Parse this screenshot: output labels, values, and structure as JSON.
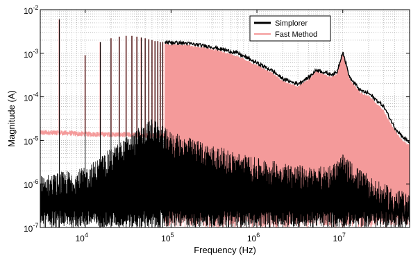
{
  "chart_data": {
    "type": "line",
    "xlabel": "Frequency (Hz)",
    "ylabel": "Magnitude (A)",
    "xscale": "log",
    "yscale": "log",
    "xlim": [
      3000,
      60000000
    ],
    "ylim": [
      1e-07,
      0.01
    ],
    "grid": true,
    "legend_position": "top-right",
    "x_ticks": [
      {
        "value": 10000,
        "base": "10",
        "exp": "4"
      },
      {
        "value": 100000,
        "base": "10",
        "exp": "5"
      },
      {
        "value": 1000000,
        "base": "10",
        "exp": "6"
      },
      {
        "value": 10000000,
        "base": "10",
        "exp": "7"
      }
    ],
    "y_ticks": [
      {
        "value": 1e-07,
        "base": "10",
        "exp": "-7"
      },
      {
        "value": 1e-06,
        "base": "10",
        "exp": "-6"
      },
      {
        "value": 1e-05,
        "base": "10",
        "exp": "-5"
      },
      {
        "value": 0.0001,
        "base": "10",
        "exp": "-4"
      },
      {
        "value": 0.001,
        "base": "10",
        "exp": "-3"
      },
      {
        "value": 0.01,
        "base": "10",
        "exp": "-2"
      }
    ],
    "series": [
      {
        "name": "Simplorer",
        "color": "#000000",
        "envelope": {
          "x": [
            3000,
            10000,
            30000,
            60000,
            100000,
            300000,
            1000000,
            2000000,
            3000000,
            5000000,
            8000000,
            10000000,
            15000000,
            25000000,
            40000000,
            60000000
          ],
          "y": [
            4e-07,
            6e-07,
            3e-06,
            8e-06,
            4e-06,
            2e-06,
            1e-06,
            8e-07,
            7e-07,
            6e-07,
            8e-07,
            1.2e-06,
            6e-07,
            3e-07,
            2e-07,
            1.5e-07
          ]
        },
        "peaks_x": [
          5000,
          10000,
          15000,
          20000,
          25000,
          30000,
          35000,
          40000,
          45000,
          50000,
          55000,
          60000,
          65000,
          70000,
          75000,
          80000
        ],
        "peaks_y": [
          0.006,
          0.0009,
          0.0018,
          0.0022,
          0.0024,
          0.0025,
          0.0025,
          0.0024,
          0.0023,
          0.0022,
          0.0021,
          0.002,
          0.0019,
          0.0019,
          0.0018,
          0.0018
        ],
        "upper": {
          "x": [
            85000,
            150000,
            300000,
            600000,
            1000000,
            1500000,
            2000000,
            2500000,
            3000000,
            4000000,
            5000000,
            7000000,
            8500000,
            10000000,
            12000000,
            16000000,
            20000000,
            30000000,
            40000000,
            50000000,
            60000000
          ],
          "y": [
            0.0018,
            0.0017,
            0.0014,
            0.001,
            0.0006,
            0.0004,
            0.00026,
            0.00022,
            0.0002,
            0.00028,
            0.00042,
            0.00033,
            0.00035,
            0.0011,
            0.00028,
            0.00014,
            0.00012,
            6e-05,
            2e-05,
            1.2e-05,
            9e-06
          ]
        }
      },
      {
        "name": "Fast Method",
        "color": "#f49a9a",
        "floor": {
          "x": [
            3000,
            5000,
            10000,
            30000,
            60000,
            85000
          ],
          "y": [
            1.5e-05,
            1.5e-05,
            1.4e-05,
            1.35e-05,
            1.3e-05,
            1.3e-05
          ]
        },
        "peaks_x": [
          5000,
          10000,
          15000,
          20000,
          25000,
          30000,
          35000,
          40000,
          45000,
          50000,
          55000,
          60000,
          65000,
          70000,
          75000,
          80000
        ],
        "peaks_y": [
          0.006,
          0.0009,
          0.0018,
          0.0022,
          0.0024,
          0.0025,
          0.0025,
          0.0024,
          0.0023,
          0.0022,
          0.0021,
          0.002,
          0.0019,
          0.0019,
          0.0018,
          0.0018
        ],
        "upper": {
          "x": [
            85000,
            150000,
            300000,
            600000,
            1000000,
            1500000,
            2000000,
            2500000,
            3000000,
            4000000,
            5000000,
            7000000,
            8500000,
            10000000,
            12000000,
            16000000,
            20000000,
            30000000,
            40000000,
            50000000,
            60000000
          ],
          "y": [
            0.0017,
            0.0016,
            0.0013,
            0.0009,
            0.00055,
            0.00037,
            0.00024,
            0.0002,
            0.00018,
            0.00026,
            0.0004,
            0.0003,
            0.00033,
            0.001,
            0.00026,
            0.00013,
            0.00011,
            5e-05,
            1.8e-05,
            1e-05,
            8e-06
          ]
        }
      }
    ]
  }
}
